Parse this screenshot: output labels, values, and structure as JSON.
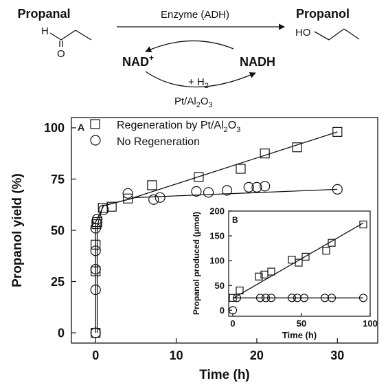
{
  "scheme": {
    "substrate_label": "Propanal",
    "product_label": "Propanol",
    "enzyme_label": "Enzyme (ADH)",
    "nad_plus_base": "NAD",
    "nad_plus_sup": "+",
    "nadh_label": "NADH",
    "h2_prefix": "+ H",
    "h2_sub": "2",
    "catalyst_pt": "Pt/Al",
    "catalyst_sub1": "2",
    "catalyst_o": "O",
    "catalyst_sub2": "3",
    "atom_h": "H",
    "atom_o": "O",
    "atom_ho": "HO"
  },
  "chart_data": [
    {
      "type": "scatter",
      "panel_label": "A",
      "xlabel": "Time (h)",
      "ylabel": "Propanol yield (%)",
      "xlim": [
        -3,
        35
      ],
      "ylim": [
        -5,
        105
      ],
      "xticks": [
        0,
        10,
        20,
        30
      ],
      "yticks": [
        0,
        25,
        50,
        75,
        100
      ],
      "grid": false,
      "legend_position": "top-left",
      "series": [
        {
          "name_base": "Regeneration by Pt/Al",
          "name_sub1": "2",
          "name_mid": "O",
          "name_sub2": "3",
          "marker": "square",
          "x": [
            0,
            0,
            0,
            0.1,
            0.2,
            0.9,
            2,
            4,
            7,
            12.8,
            18,
            21,
            25,
            30
          ],
          "y": [
            0,
            30,
            43,
            53,
            54,
            61,
            61.5,
            65.5,
            72,
            76,
            80,
            87.5,
            90.5,
            98
          ]
        },
        {
          "name": "No Regeneration",
          "marker": "circle",
          "x": [
            0,
            0,
            0,
            0,
            0,
            0.2,
            1,
            4,
            7.2,
            8,
            12.5,
            14,
            16.3,
            19,
            20,
            21,
            30
          ],
          "y": [
            0,
            21,
            31,
            40,
            51,
            55.5,
            60,
            68,
            65,
            66,
            69,
            68.5,
            69.5,
            71,
            71,
            71.5,
            70
          ]
        }
      ],
      "fit_lines": [
        {
          "x": [
            0.2,
            0.2,
            0.9,
            4,
            30
          ],
          "y": [
            0,
            52,
            62,
            65,
            98
          ]
        },
        {
          "x": [
            0,
            0,
            1,
            5,
            30
          ],
          "y": [
            0,
            54,
            62,
            66,
            70
          ]
        }
      ]
    },
    {
      "type": "scatter",
      "panel_label": "B",
      "xlabel": "Time (h)",
      "ylabel": "Propanol produced (μmol)",
      "xlim": [
        -3,
        100
      ],
      "ylim": [
        -12,
        200
      ],
      "xticks": [
        0,
        50,
        100
      ],
      "yticks": [
        0,
        50,
        100,
        150,
        200
      ],
      "grid": false,
      "series": [
        {
          "marker": "square",
          "x": [
            0,
            5,
            19,
            23,
            28,
            43,
            48,
            53,
            68,
            72,
            95
          ],
          "y": [
            25,
            40,
            68,
            72,
            78,
            102,
            96,
            108,
            120,
            136,
            173
          ]
        },
        {
          "marker": "circle",
          "x": [
            0,
            3,
            20,
            24,
            28,
            43,
            47,
            52,
            67,
            72,
            95
          ],
          "y": [
            0,
            25,
            25,
            25,
            25,
            25,
            25,
            25,
            25,
            25,
            25
          ]
        }
      ],
      "fit_lines": [
        {
          "x": [
            0,
            95
          ],
          "y": [
            24,
            176
          ]
        },
        {
          "x": [
            0,
            95
          ],
          "y": [
            25,
            25
          ]
        }
      ]
    }
  ]
}
